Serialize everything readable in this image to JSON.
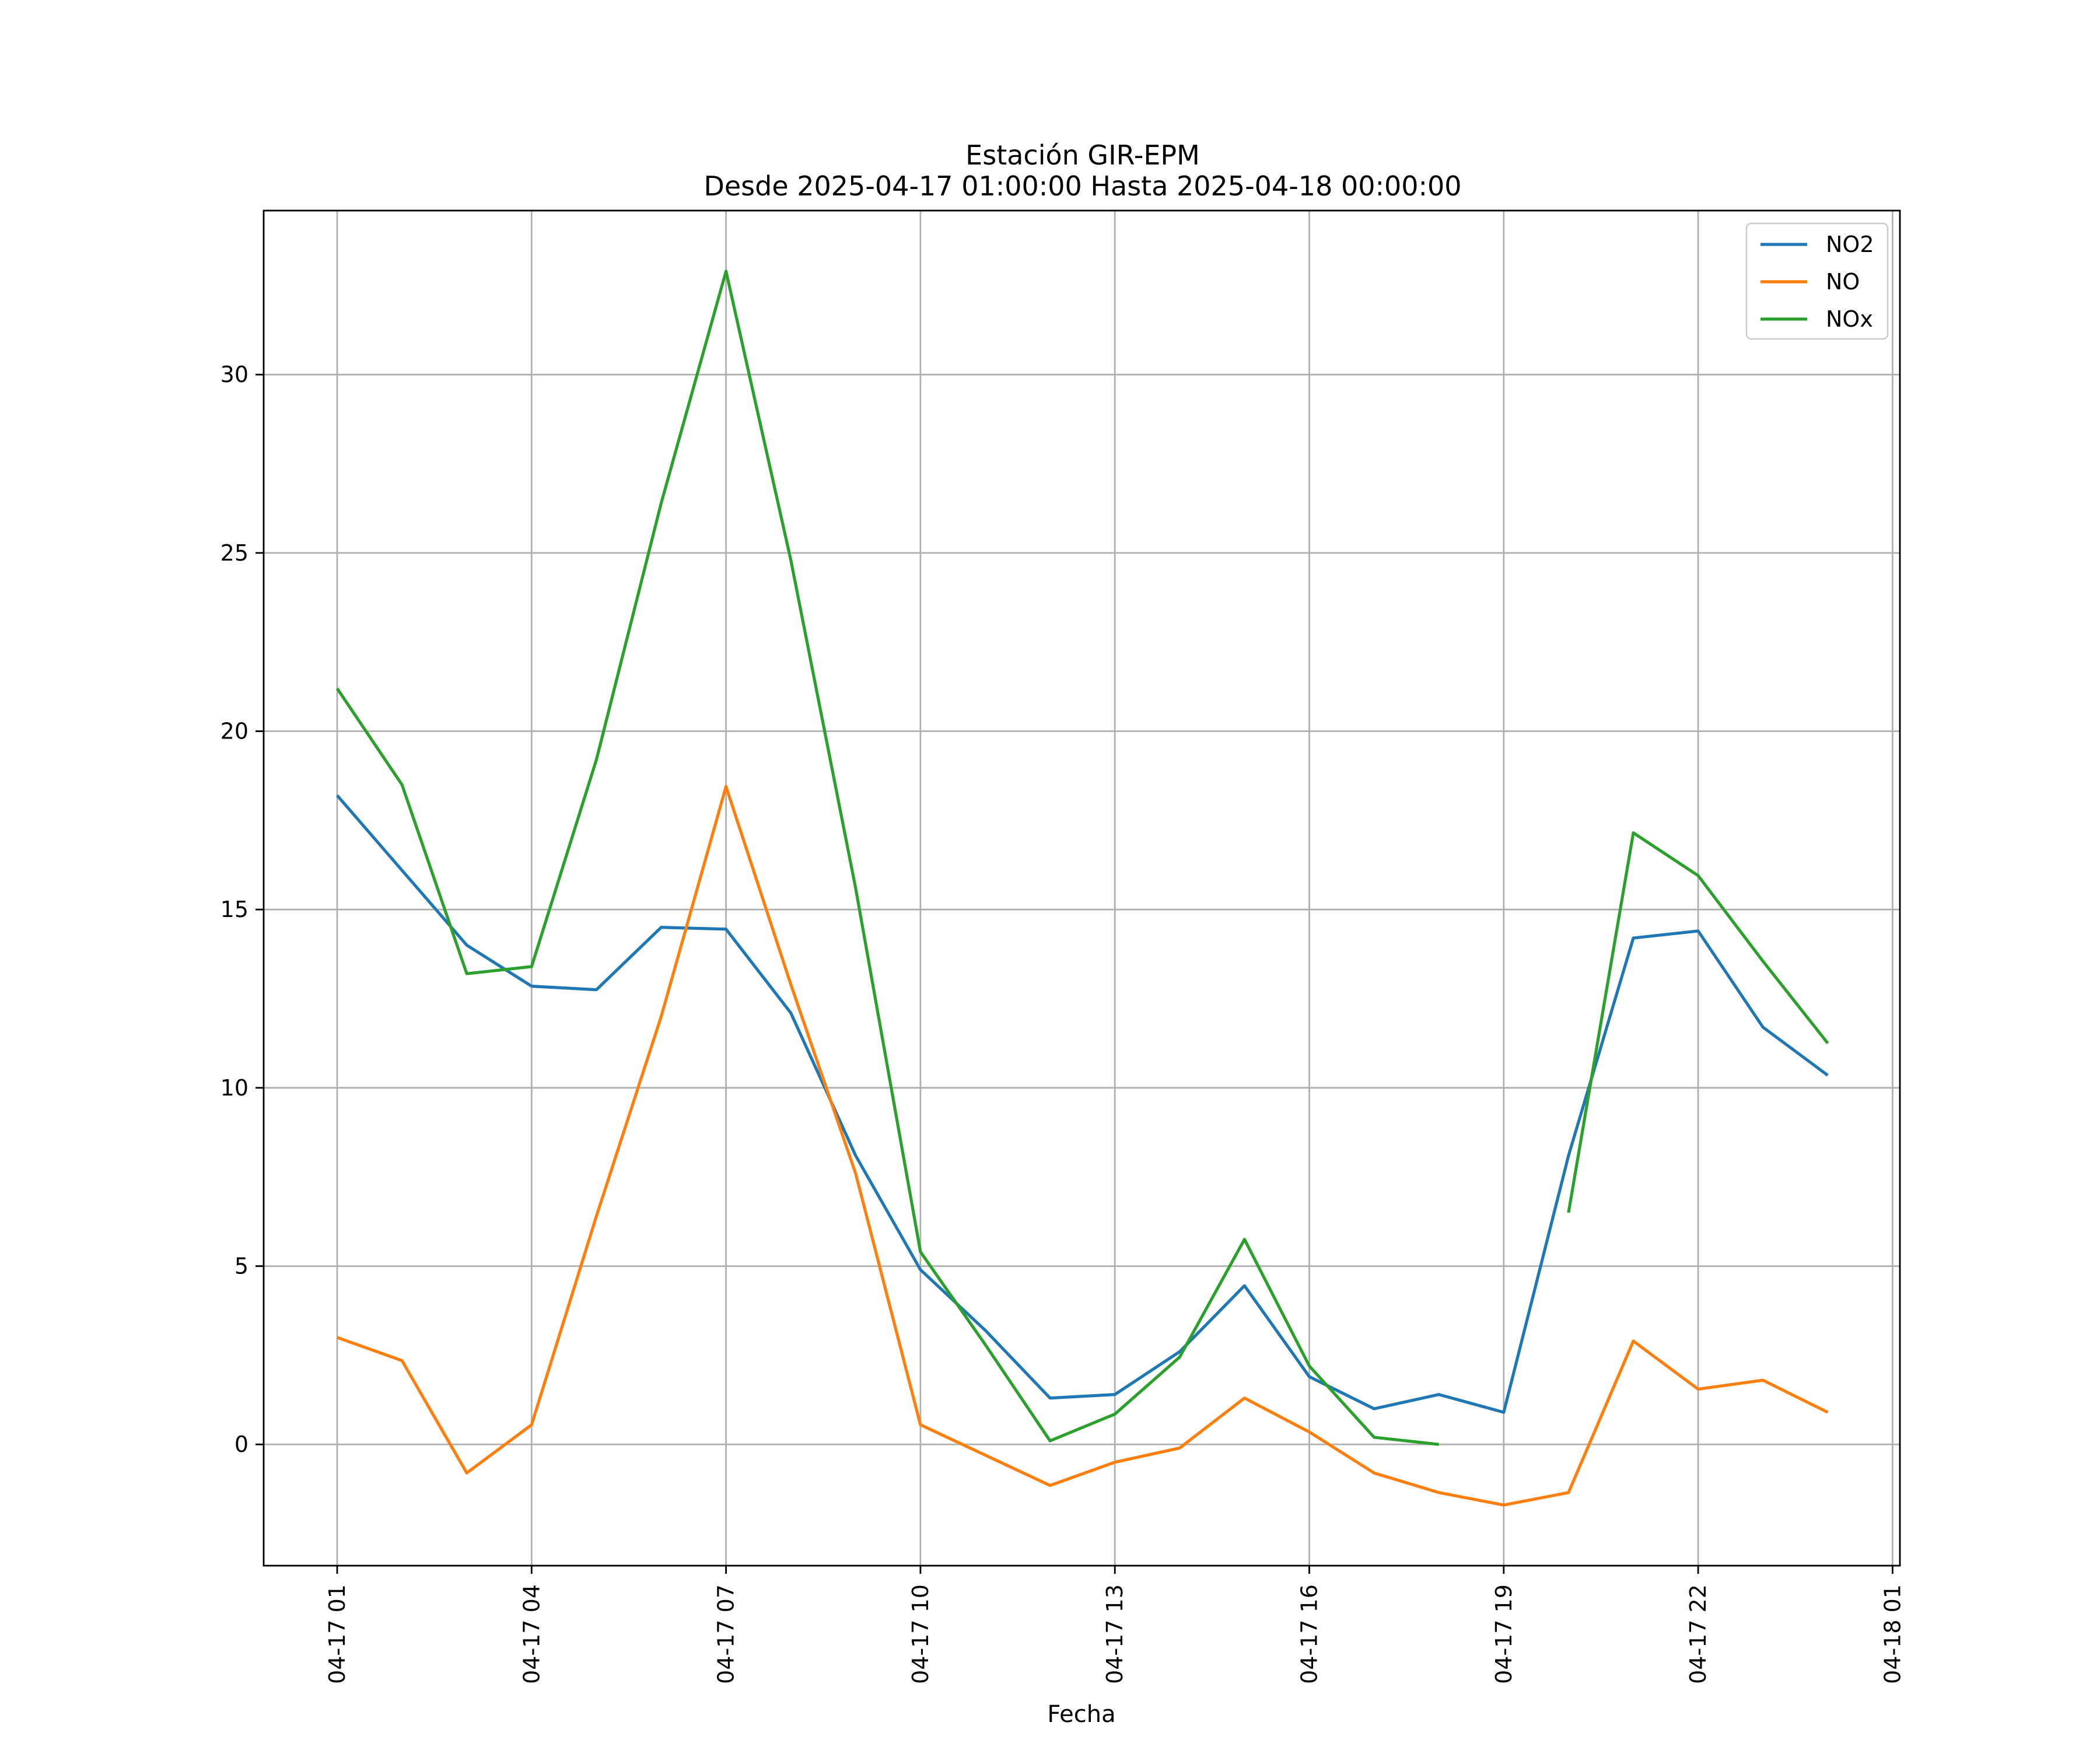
{
  "chart_data": {
    "type": "line",
    "title": "Estación GIR-EPM",
    "subtitle": "Desde 2025-04-17 01:00:00 Hasta 2025-04-18 00:00:00",
    "xlabel": "Fecha",
    "ylabel": "",
    "x": [
      "04-17 01",
      "04-17 02",
      "04-17 03",
      "04-17 04",
      "04-17 05",
      "04-17 06",
      "04-17 07",
      "04-17 08",
      "04-17 09",
      "04-17 10",
      "04-17 11",
      "04-17 12",
      "04-17 13",
      "04-17 14",
      "04-17 15",
      "04-17 16",
      "04-17 17",
      "04-17 18",
      "04-17 19",
      "04-17 20",
      "04-17 21",
      "04-17 22",
      "04-17 23",
      "04-18 00"
    ],
    "x_ticks": [
      "04-17 01",
      "04-17 04",
      "04-17 07",
      "04-17 10",
      "04-17 13",
      "04-17 16",
      "04-17 19",
      "04-17 22",
      "04-18 01"
    ],
    "y_ticks": [
      0,
      5,
      10,
      15,
      20,
      25,
      30
    ],
    "xlim": [
      "04-17 00:08",
      "04-18 01:05"
    ],
    "ylim": [
      -3.4,
      34.6
    ],
    "grid": true,
    "legend_position": "top-right",
    "series": [
      {
        "name": "NO2",
        "color": "#1f77b4",
        "values": [
          18.2,
          16.1,
          14.0,
          12.85,
          12.75,
          14.5,
          14.45,
          12.1,
          8.1,
          4.9,
          3.2,
          1.3,
          1.4,
          2.6,
          4.45,
          1.9,
          1.0,
          1.4,
          0.9,
          8.1,
          14.2,
          14.4,
          11.7,
          10.35
        ]
      },
      {
        "name": "NO",
        "color": "#ff7f0e",
        "values": [
          3.0,
          2.35,
          -0.8,
          0.55,
          6.4,
          12.0,
          18.45,
          12.9,
          7.6,
          0.55,
          -0.3,
          -1.15,
          -0.5,
          -0.1,
          1.3,
          0.35,
          -0.8,
          -1.35,
          -1.7,
          -1.35,
          2.9,
          1.55,
          1.8,
          0.9
        ]
      },
      {
        "name": "NOx",
        "color": "#2ca02c",
        "values": [
          21.2,
          18.5,
          13.2,
          13.4,
          19.2,
          26.4,
          32.9,
          24.8,
          15.6,
          5.4,
          2.8,
          0.1,
          0.85,
          2.45,
          5.75,
          2.2,
          0.2,
          0.0,
          null,
          6.5,
          17.15,
          15.95,
          13.55,
          11.25
        ]
      }
    ]
  }
}
